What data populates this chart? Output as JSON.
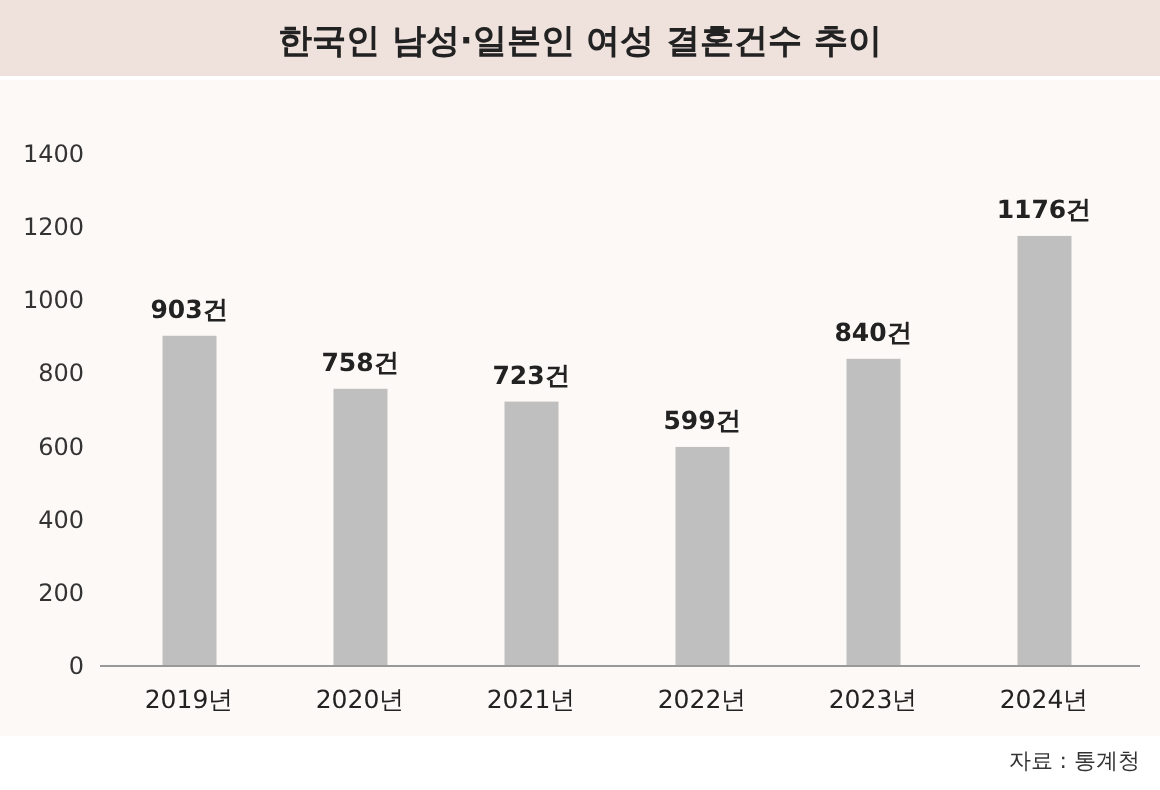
{
  "chart_data": {
    "type": "bar",
    "title": "한국인 남성·일본인 여성 결혼건수 추이",
    "categories": [
      "2019년",
      "2020년",
      "2021년",
      "2022년",
      "2023년",
      "2024년"
    ],
    "values": [
      903,
      758,
      723,
      599,
      840,
      1176
    ],
    "value_labels": [
      "903건",
      "758건",
      "723건",
      "599건",
      "840건",
      "1176건"
    ],
    "color": "#bfbfbf",
    "ylim": [
      0,
      1400
    ],
    "yticks": [
      0,
      200,
      400,
      600,
      800,
      1000,
      1200,
      1400
    ],
    "annotations": [
      "자료 : 통계청"
    ]
  }
}
